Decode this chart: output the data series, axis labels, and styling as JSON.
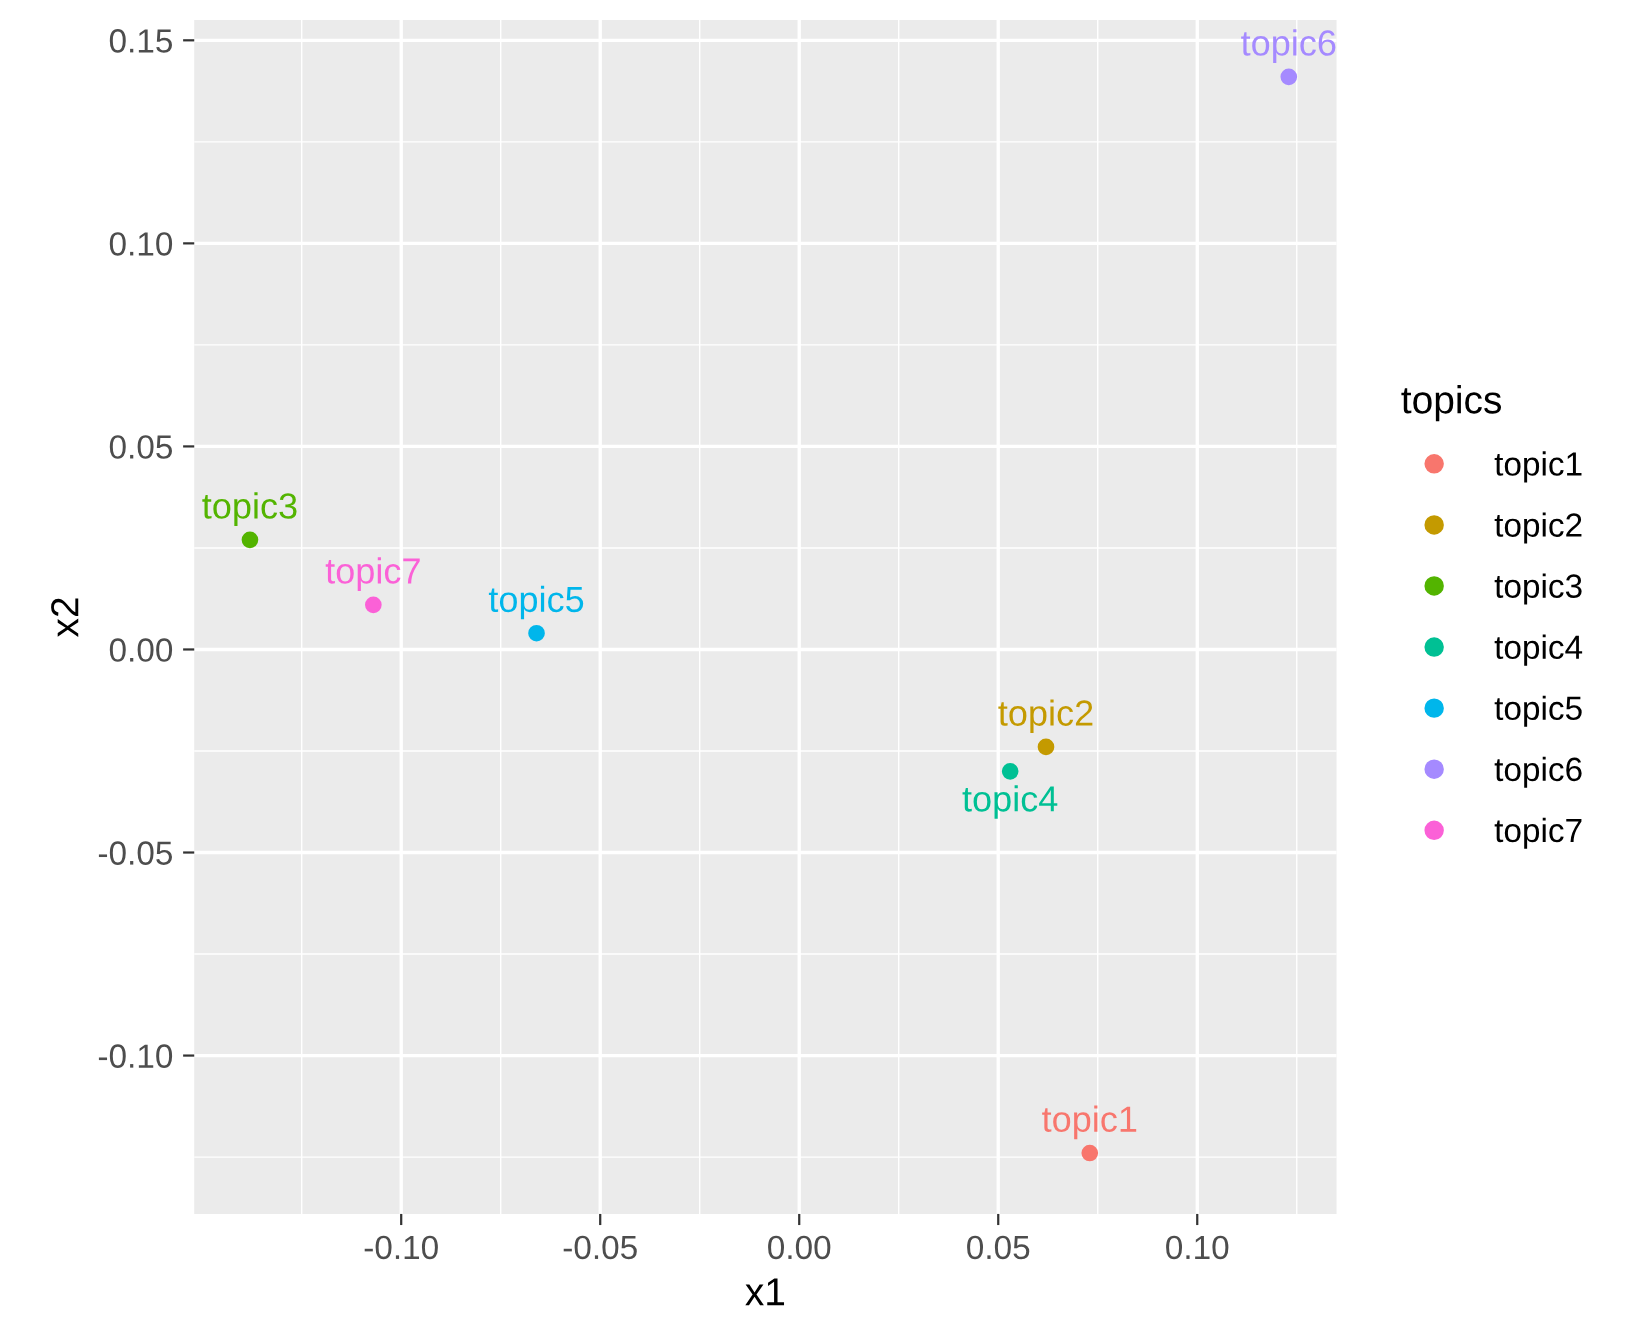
{
  "chart_data": {
    "type": "scatter",
    "xlabel": "x1",
    "ylabel": "x2",
    "legend_title": "topics",
    "legend": "right",
    "grid": true,
    "marker": "circle",
    "xlim": [
      -0.152,
      0.135
    ],
    "ylim": [
      -0.139,
      0.155
    ],
    "xticks": [
      {
        "value": -0.1,
        "label": "-0.10"
      },
      {
        "value": -0.05,
        "label": "-0.05"
      },
      {
        "value": 0,
        "label": "0.00"
      },
      {
        "value": 0.05,
        "label": "0.05"
      },
      {
        "value": 0.1,
        "label": "0.10"
      }
    ],
    "yticks": [
      {
        "value": -0.1,
        "label": "-0.10"
      },
      {
        "value": -0.05,
        "label": "-0.05"
      },
      {
        "value": 0,
        "label": "0.00"
      },
      {
        "value": 0.05,
        "label": "0.05"
      },
      {
        "value": 0.1,
        "label": "0.10"
      },
      {
        "value": 0.15,
        "label": "0.15"
      }
    ],
    "series": [
      {
        "name": "topic1",
        "color": "#f8766d",
        "x": [
          0.073
        ],
        "values": [
          -0.124
        ]
      },
      {
        "name": "topic2",
        "color": "#c49a00",
        "x": [
          0.062
        ],
        "values": [
          -0.024
        ]
      },
      {
        "name": "topic3",
        "color": "#53b400",
        "x": [
          -0.138
        ],
        "values": [
          0.027
        ]
      },
      {
        "name": "topic4",
        "color": "#00c094",
        "x": [
          0.053
        ],
        "values": [
          -0.03
        ]
      },
      {
        "name": "topic5",
        "color": "#00b6eb",
        "x": [
          -0.066
        ],
        "values": [
          0.004
        ]
      },
      {
        "name": "topic6",
        "color": "#a58aff",
        "x": [
          0.123
        ],
        "values": [
          0.141
        ]
      },
      {
        "name": "topic7",
        "color": "#fb61d7",
        "x": [
          -0.107
        ],
        "values": [
          0.011
        ]
      }
    ]
  }
}
